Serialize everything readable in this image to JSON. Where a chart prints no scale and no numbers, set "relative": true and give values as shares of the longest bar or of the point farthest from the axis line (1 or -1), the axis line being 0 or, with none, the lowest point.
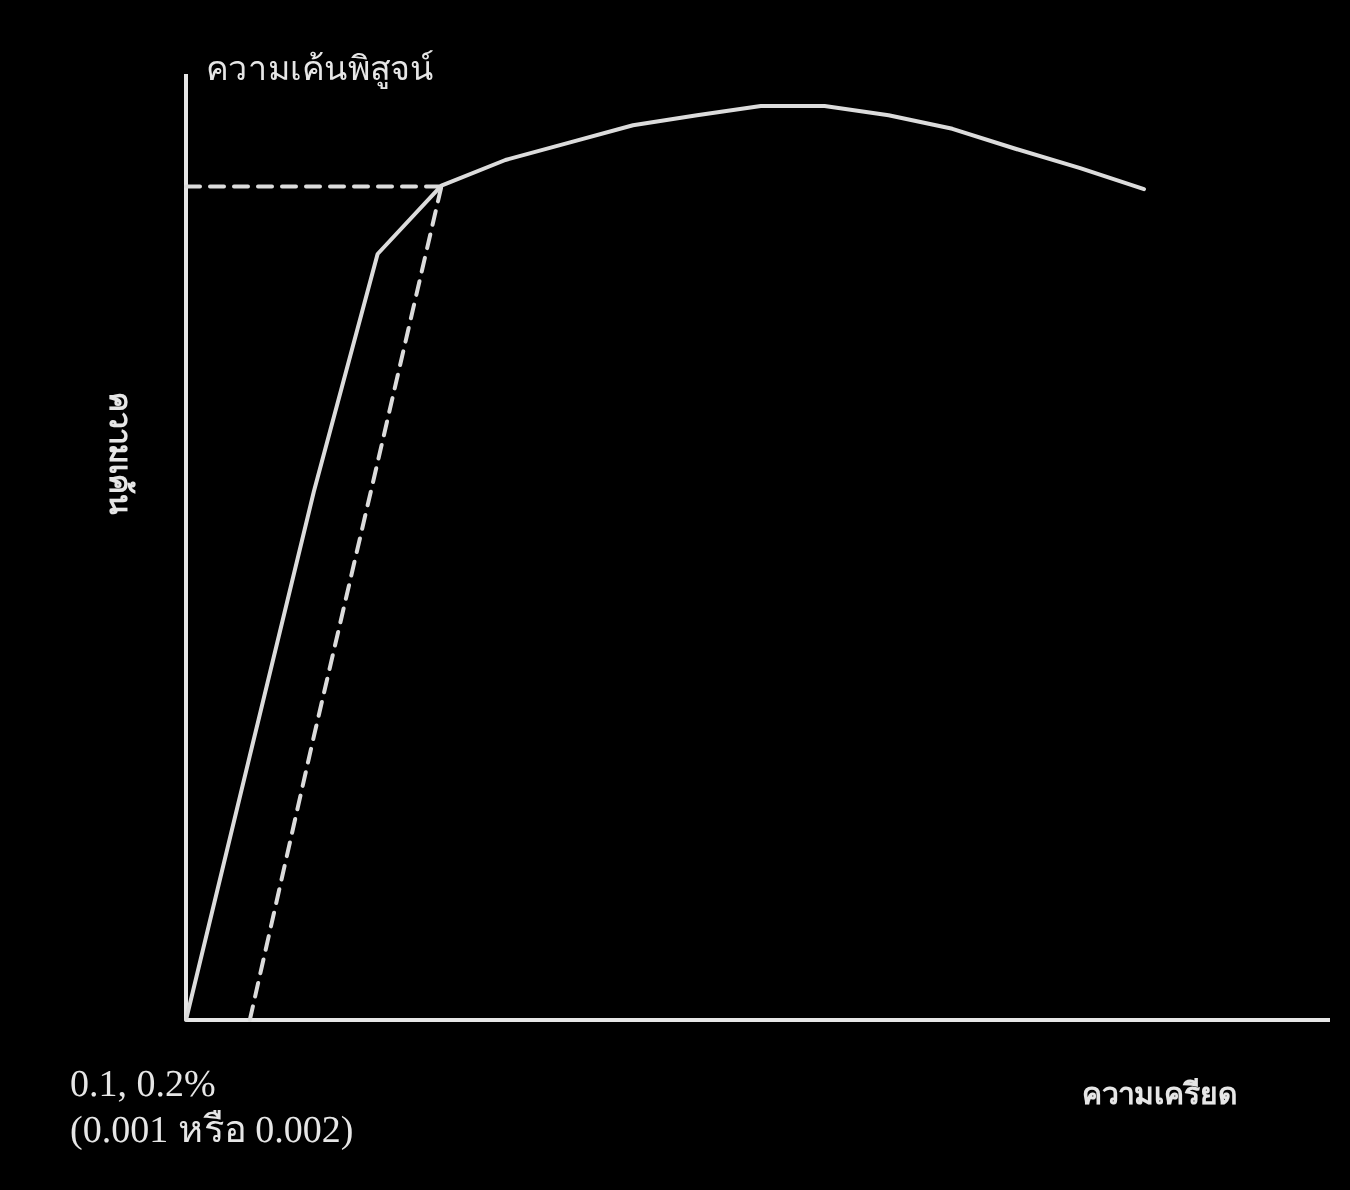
{
  "chart_data": {
    "type": "line",
    "relative": true,
    "ylabel": "ความเค้น",
    "xlabel": "ความเครียด",
    "annotations": [
      "ความเค้นพิสูจน์",
      "0.1, 0.2%\n(0.001 หรือ 0.002)"
    ],
    "categories": [
      null,
      null,
      null,
      null,
      null,
      null,
      null,
      null,
      null,
      null,
      null,
      null,
      null,
      null,
      null,
      null
    ],
    "series": [
      {
        "type": "line",
        "color": "#dcdcdc",
        "line_style": "solid",
        "values": [
          0,
          0.289,
          0.578,
          0.838,
          0.913,
          0.941,
          0.96,
          0.979,
          0.99,
          1.0,
          1.0,
          0.99,
          0.975,
          0.953,
          0.932,
          0.909
        ]
      },
      {
        "type": "line",
        "color": "#dcdcdc",
        "line_style": "dashed",
        "values": [
          null,
          0,
          0.31,
          0.61,
          0.912,
          null,
          null,
          null,
          null,
          null,
          null,
          null,
          null,
          null,
          null,
          null
        ]
      },
      {
        "type": "line",
        "color": "#dcdcdc",
        "line_style": "dashed",
        "values": [
          0.912,
          0.912,
          0.912,
          0.912,
          0.912,
          null,
          null,
          null,
          null,
          null,
          null,
          null,
          null,
          null,
          null,
          null
        ]
      }
    ]
  }
}
